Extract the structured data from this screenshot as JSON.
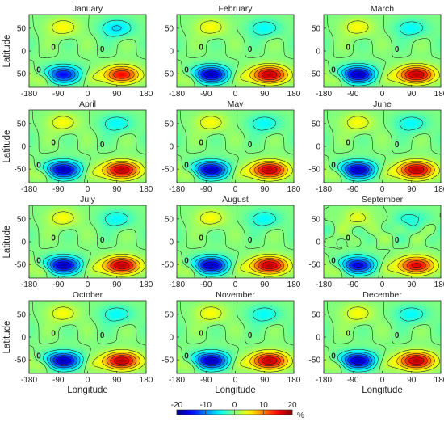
{
  "chart_data": {
    "type": "heatmap",
    "description_units": "percent",
    "x_ticks": [
      -180,
      -90,
      0,
      90,
      180
    ],
    "y_ticks": [
      50,
      0,
      -50
    ],
    "xlim": [
      -180,
      180
    ],
    "ylim": [
      -80,
      80
    ],
    "xlabel": "Longitude",
    "ylabel": "Latitude",
    "panels": [
      {
        "title": "January",
        "mode": "jan"
      },
      {
        "title": "February",
        "mode": "std"
      },
      {
        "title": "March",
        "mode": "std"
      },
      {
        "title": "April",
        "mode": "std"
      },
      {
        "title": "May",
        "mode": "std"
      },
      {
        "title": "June",
        "mode": "std"
      },
      {
        "title": "July",
        "mode": "std"
      },
      {
        "title": "August",
        "mode": "std"
      },
      {
        "title": "September",
        "mode": "weak"
      },
      {
        "title": "October",
        "mode": "std"
      },
      {
        "title": "November",
        "mode": "std"
      },
      {
        "title": "December",
        "mode": "std"
      }
    ],
    "contour_levels": [
      -18,
      -15,
      -12,
      -9,
      -6,
      -3,
      0,
      3,
      6,
      9,
      12,
      15,
      18
    ],
    "contour_zero_label": "0",
    "colorbar": {
      "min": -20,
      "max": 20,
      "ticks": [
        -20,
        -10,
        0,
        10,
        20
      ],
      "unit": "%",
      "colormap": "jet"
    }
  }
}
